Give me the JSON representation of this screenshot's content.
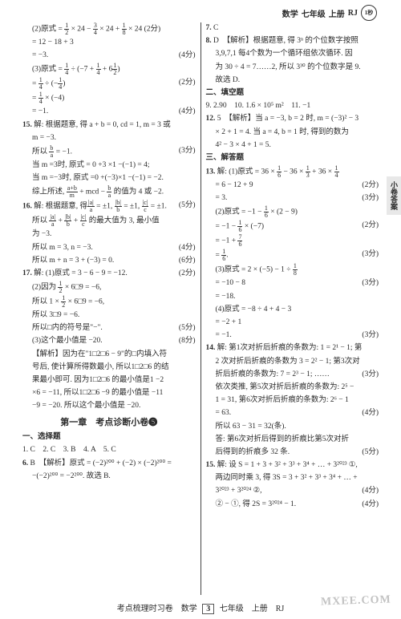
{
  "header": {
    "subject": "数学",
    "grade": "七年级",
    "volume": "上册",
    "edition": "RJ",
    "badge": "1秒"
  },
  "sideTab": "小卷答案",
  "left": {
    "l1": "(2)原式 = ",
    "l1b": " × 24 − ",
    "l1c": " × 24 + ",
    "l1d": " × 24 (2分)",
    "l2": "= 12 − 18 + 3",
    "l3_a": "= −3.",
    "l3_s": "(4分)",
    "l4": "(3)原式 = ",
    "l4b": " ÷ (−7 + ",
    "l4c": " + 6",
    "l4d": ")",
    "l5a": "= ",
    "l5b": " ÷ (−",
    "l5c": ")",
    "l5_s": "(2分)",
    "l6a": "= ",
    "l6b": " × (−4)",
    "l7_a": "= −1.",
    "l7_s": "(4分)",
    "q15a": "解: 根据题意, 得 a + b = 0, cd = 1, m = 3 或",
    "q15b": "m = −3.",
    "q15c_a": "所以 ",
    "q15c_b": " = −1.",
    "q15c_s": "(3分)",
    "q15d": "当 m =3时, 原式 = 0 +3 ×1 −(−1) = 4;",
    "q15e": "当 m =−3时, 原式 =0 +(−3)×1 −(−1) = −2.",
    "q15f_a": "综上所述, ",
    "q15f_b": " + mcd − ",
    "q15f_c": " 的值为 4 或 −2.",
    "q15g_s": "(5分)",
    "q16a_a": "解: 根据题意, 得",
    "q16a_b": " = ±1, ",
    "q16a_c": " = ±1, ",
    "q16a_d": " = ±1.",
    "q16b_a": "所以 ",
    "q16b_b": " + ",
    "q16b_c": " + ",
    "q16b_d": " 的最大值为 3, 最小值",
    "q16c": "为 −3.",
    "q16d_a": "所以 m = 3, n = −3.",
    "q16d_s": "(4分)",
    "q16e_a": "所以 m + n = 3 + (−3) = 0.",
    "q16e_s": "(6分)",
    "q17a_a": "解: (1)原式 = 3 − 6 − 9 = −12.",
    "q17a_s": "(2分)",
    "q17b": "(2)因为 ",
    "q17b2": " × 6□9 = −6,",
    "q17c_a": "所以 1 × ",
    "q17c_b": " × 6□9 = −6,",
    "q17d": "所以 3□9 = −6.",
    "q17e_a": "所以□内的符号是\"−\".",
    "q17e_s": "(5分)",
    "q17f_a": "(3)这个最小值是 −20.",
    "q17f_s": "(8分)",
    "q17g": "【解析】因为在\"1□2□6 − 9\"的□内填入符",
    "q17h": "号后, 使计算所得数最小, 所以1□2□6 的结",
    "q17i": "果最小即可. 因为1□2□6 的最小值是1 −2",
    "q17j": "×6 = −11, 所以1□2□6 −9 的最小值是 −11",
    "q17k": "−9 = −20. 所以这个最小值是 −20.",
    "sectionTitle": "第一章　考点诊断小卷❺",
    "sel": "一、选择题",
    "a1": "1. C　2. C　3. B　4. A　5. C",
    "a6a": "B　【解析】原式 = (−2)²⁰⁰ + (−2) × (−2)²⁰⁰ =",
    "a6b": "−(−2)²⁰⁰ = −2²⁰⁰. 故选 B."
  },
  "right": {
    "a7": "C",
    "a8a": "D　【解析】根据题意, 得 3ⁿ 的个位数字按照",
    "a8b": "3,9,7,1 每4个数为一个循环组依次循环. 因",
    "a8c": "为 30 ÷ 4 = 7……2, 所以 3³⁰ 的个位数字是 9.",
    "a8d": "故选 D.",
    "fill": "二、填空题",
    "a9": "9. 2.90　10. 1.6 × 10⁵ m²　11. −1",
    "a12a": "5　【解析】当 a = −3, b = 2 时, m = (−3)² − 3",
    "a12b": "× 2 + 1 = 4. 当 a = 4, b = 1 时, 得到的数为",
    "a12c": "4² − 3 × 4 + 1 = 5.",
    "ans": "三、解答题",
    "q13a_a": "解: (1)原式 = 36 × ",
    "q13a_b": " − 36 × ",
    "q13a_c": " + 36 × ",
    "q13a_s": "(2分)",
    "q13b": "= 6 − 12 + 9",
    "q13c_a": "= 3.",
    "q13c_s": "(3分)",
    "q13d_a": "(2)原式 = −1 − ",
    "q13d_b": " × (2 − 9)",
    "q13e_a": "= −1 − ",
    "q13e_b": " × (−7)",
    "q13e_s": "(2分)",
    "q13f_a": "= −1 + ",
    "q13g_a": "= ",
    "q13g_b": ".",
    "q13g_s": "(3分)",
    "q13h_a": "(3)原式 = 2 × (−5) − 1 ÷ ",
    "q13i": "= −10 − 8",
    "q13i_s": "(3分)",
    "q13j_a": "= −18.",
    "q13k_a": "(4)原式 = −8 ÷ 4 + 4 − 3",
    "q13l": "= −2 + 1",
    "q13m_a": "= −1.",
    "q13m_s": "(3分)",
    "q14a": "解: 第1次对折后折痕的条数为: 1 = 2¹ − 1; 第",
    "q14b": "2 次对折后折痕的条数为 3 = 2² − 1; 第3次对",
    "q14c": "折后折痕的条数为: 7 = 2³ − 1; ……",
    "q14c_s": "(3分)",
    "q14d": "依次类推, 第5次对折后折痕的条数为: 2⁵ −",
    "q14e": "1 = 31, 第6次对折后折痕的条数为: 2⁶ − 1",
    "q14f_a": "= 63.",
    "q14f_s": "(4分)",
    "q14g": "所以 63 − 31 = 32(条).",
    "q14h": "答: 第6次对折后得到的折痕比第5次对折",
    "q14i_a": "后得到的折痕多 32 条.",
    "q14i_s": "(5分)",
    "q15a": "解: 设 S = 1 + 3 + 3² + 3³ + 3⁴ + … + 3²⁰²³ ①,",
    "q15b": "两边同时乘 3, 得 3S = 3 + 3² + 3³ + 3⁴ + … +",
    "q15c_a": "3²⁰²³ + 3²⁰²⁴ ②,",
    "q15c_s": "(4分)",
    "q15d_a": "② − ①, 得 2S = 3²⁰²⁴ − 1.",
    "q15d_s": "(4分)"
  },
  "footer": {
    "left": "考点梳理时习卷　数学",
    "page": "3",
    "right": "七年级　上册　RJ"
  },
  "watermark": "MXEE.COM"
}
